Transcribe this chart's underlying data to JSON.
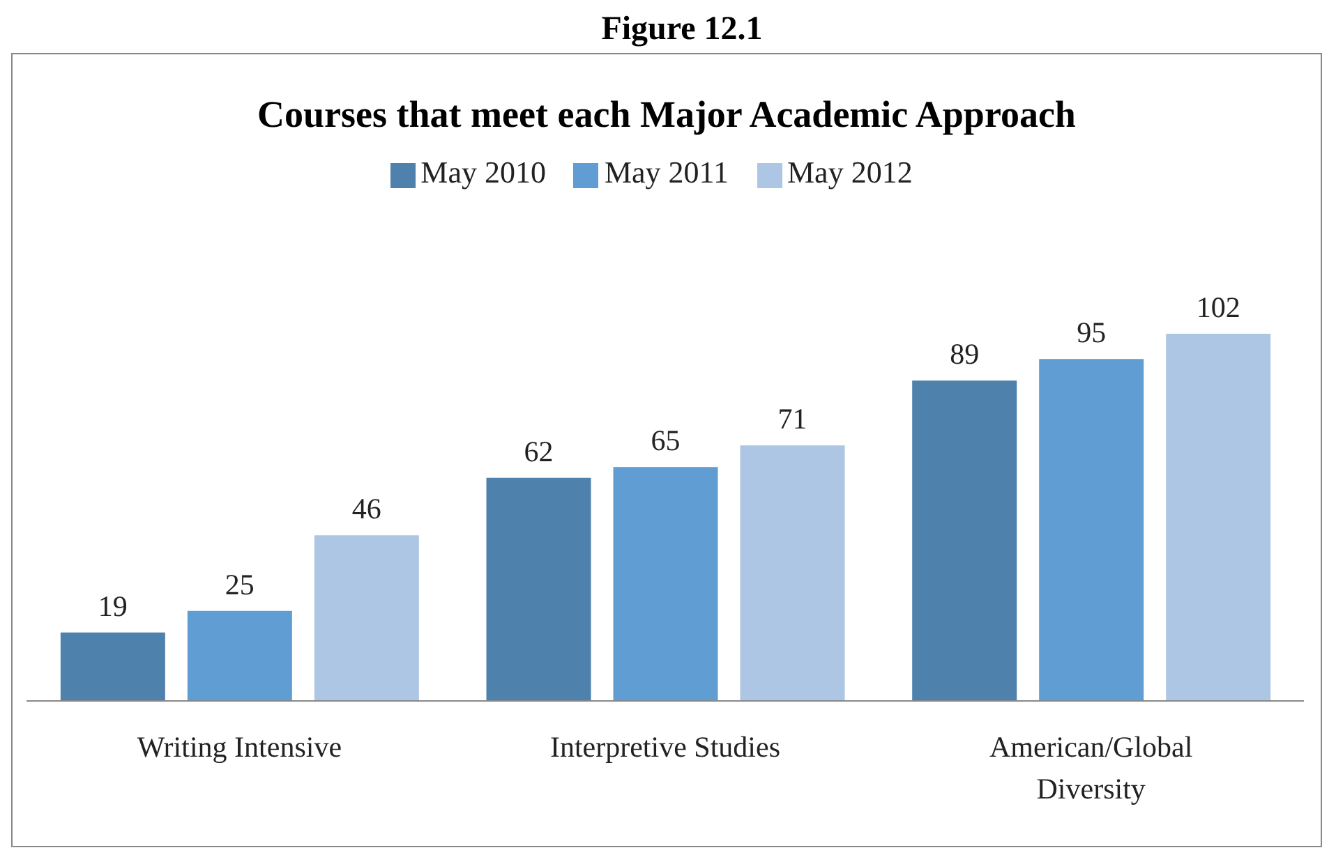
{
  "chart_data": {
    "type": "bar",
    "title": "Courses that meet each Major Academic Approach",
    "annotations": [
      "Figure 12.1"
    ],
    "categories": [
      "Writing Intensive",
      "Interpretive Studies",
      "American/Global Diversity"
    ],
    "series": [
      {
        "name": "May 2010",
        "color": "#4f81ad",
        "values": [
          19,
          62,
          89
        ]
      },
      {
        "name": "May 2011",
        "color": "#5f9dd3",
        "values": [
          25,
          65,
          95
        ]
      },
      {
        "name": "May 2012",
        "color": "#adc6e4",
        "values": [
          46,
          71,
          102
        ]
      }
    ],
    "data_labels": true,
    "legend": "top",
    "grid": false,
    "tick_labels": "x"
  }
}
